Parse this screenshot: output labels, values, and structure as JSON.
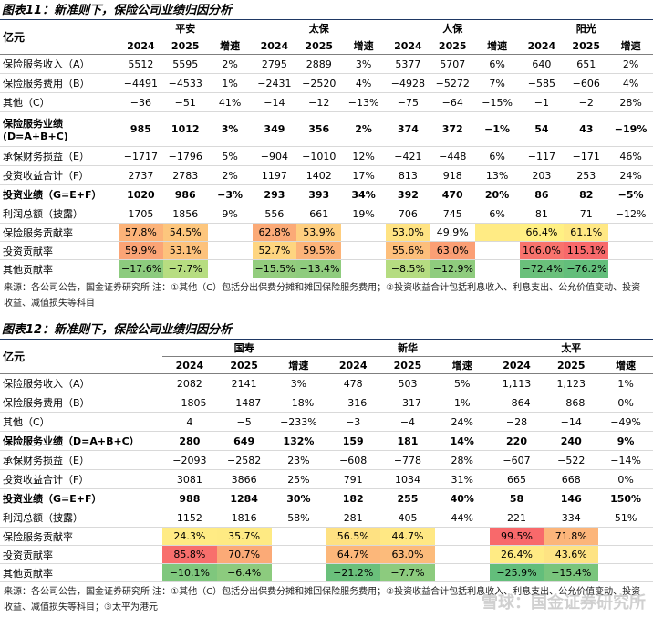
{
  "table1": {
    "title": "图表11：新准则下，保险公司业绩归因分析",
    "unit": "亿元",
    "companies": [
      {
        "name": "平安",
        "cols": [
          "2024",
          "2025",
          "增速"
        ]
      },
      {
        "name": "太保",
        "cols": [
          "2024",
          "2025",
          "增速"
        ]
      },
      {
        "name": "人保",
        "cols": [
          "2024",
          "2025",
          "增速"
        ]
      },
      {
        "name": "阳光",
        "cols": [
          "2024",
          "2025",
          "增速"
        ]
      }
    ],
    "rows": [
      {
        "label": "保险服务收入（A）",
        "cells": [
          "5512",
          "5595",
          "2%",
          "2795",
          "2889",
          "3%",
          "5377",
          "5707",
          "6%",
          "640",
          "651",
          "2%"
        ]
      },
      {
        "label": "保险服务费用（B）",
        "cells": [
          "−4491",
          "−4533",
          "1%",
          "−2431",
          "−2520",
          "4%",
          "−4928",
          "−5272",
          "7%",
          "−585",
          "−606",
          "4%"
        ]
      },
      {
        "label": "其他（C）",
        "cells": [
          "−36",
          "−51",
          "41%",
          "−14",
          "−12",
          "−13%",
          "−75",
          "−64",
          "−15%",
          "−1",
          "−2",
          "28%"
        ]
      },
      {
        "label": [
          "保险服务业绩",
          "(D=A+B+C)"
        ],
        "bold": true,
        "cells": [
          "985",
          "1012",
          "3%",
          "349",
          "356",
          "2%",
          "374",
          "372",
          "−1%",
          "54",
          "43",
          "−19%"
        ]
      },
      {
        "label": "承保财务损益（E）",
        "cells": [
          "−1717",
          "−1796",
          "5%",
          "−904",
          "−1010",
          "12%",
          "−421",
          "−448",
          "6%",
          "−117",
          "−171",
          "46%"
        ]
      },
      {
        "label": "投资收益合计（F）",
        "cells": [
          "2737",
          "2783",
          "2%",
          "1197",
          "1402",
          "17%",
          "813",
          "918",
          "13%",
          "203",
          "253",
          "24%"
        ]
      },
      {
        "label": "投资业绩（G=E+F）",
        "bold": true,
        "cells": [
          "1020",
          "986",
          "−3%",
          "293",
          "393",
          "34%",
          "392",
          "470",
          "20%",
          "86",
          "82",
          "−5%"
        ]
      },
      {
        "label": "利润总额（披露）",
        "cells": [
          "1705",
          "1856",
          "9%",
          "556",
          "661",
          "19%",
          "706",
          "745",
          "6%",
          "81",
          "71",
          "−12%"
        ]
      },
      {
        "label": "保险服务贡献率",
        "cells": [
          "57.8%",
          "54.5%",
          null,
          "62.8%",
          "53.9%",
          null,
          "53.0%",
          "49.9%",
          null,
          "66.4%",
          "61.1%",
          null
        ],
        "fills": [
          "#fcb379",
          "#fdc67d",
          null,
          "#fbaa77",
          "#fece7f",
          null,
          "#ffe383",
          null,
          "#ffeb84",
          "#fff083",
          "#ffe884",
          null
        ]
      },
      {
        "label": "投资贡献率",
        "cells": [
          "59.9%",
          "53.1%",
          null,
          "52.7%",
          "59.5%",
          null,
          "55.6%",
          "63.0%",
          null,
          "106.0%",
          "115.1%",
          null
        ],
        "fills": [
          "#fba476",
          "#fdc27c",
          null,
          "#fed580",
          "#fcb379",
          null,
          "#fdbf7b",
          "#fb9f75",
          null,
          "#f8736d",
          "#f8696b",
          null
        ]
      },
      {
        "label": "其他贡献率",
        "cells": [
          "−17.6%",
          "−7.7%",
          null,
          "−15.5%",
          "−13.4%",
          null,
          "−8.5%",
          "−12.9%",
          null,
          "−72.4%",
          "−76.2%",
          null
        ],
        "fills": [
          "#8ccb7e",
          "#b7dd81",
          null,
          "#93cd7e",
          "#8fcc7e",
          null,
          "#b5dc81",
          "#8fcc7e",
          null,
          "#6ac07b",
          "#63be7b",
          null
        ]
      }
    ],
    "source": "来源：各公司公告，国金证券研究所  注：①其他（C）包括分出保费分摊和摊回保险服务费用；②投资收益合计包括利息收入、利息支出、公允价值变动、投资收益、减值损失等科目"
  },
  "table2": {
    "title": "图表12：新准则下，保险公司业绩归因分析",
    "unit": "亿元",
    "companies": [
      {
        "name": "国寿",
        "cols": [
          "2024",
          "2025",
          "增速"
        ]
      },
      {
        "name": "新华",
        "cols": [
          "2024",
          "2025",
          "增速"
        ]
      },
      {
        "name": "太平",
        "cols": [
          "2024",
          "2025",
          "增速"
        ]
      }
    ],
    "rows": [
      {
        "label": "保险服务收入（A）",
        "cells": [
          "2082",
          "2141",
          "3%",
          "478",
          "503",
          "5%",
          "1,113",
          "1,123",
          "1%"
        ]
      },
      {
        "label": "保险服务费用（B）",
        "cells": [
          "−1805",
          "−1487",
          "−18%",
          "−316",
          "−317",
          "1%",
          "−864",
          "−868",
          "0%"
        ]
      },
      {
        "label": "其他（C）",
        "cells": [
          "4",
          "−5",
          "−233%",
          "−3",
          "−4",
          "24%",
          "−28",
          "−14",
          "−49%"
        ]
      },
      {
        "label": "保险服务业绩（D=A+B+C）",
        "bold": true,
        "cells": [
          "280",
          "649",
          "132%",
          "159",
          "181",
          "14%",
          "220",
          "240",
          "9%"
        ]
      },
      {
        "label": "承保财务损益（E）",
        "cells": [
          "−2093",
          "−2582",
          "23%",
          "−608",
          "−778",
          "28%",
          "−607",
          "−522",
          "−14%"
        ]
      },
      {
        "label": "投资收益合计（F）",
        "cells": [
          "3081",
          "3866",
          "25%",
          "791",
          "1034",
          "31%",
          "665",
          "668",
          "0%"
        ]
      },
      {
        "label": "投资业绩（G=E+F）",
        "bold": true,
        "cells": [
          "988",
          "1284",
          "30%",
          "182",
          "255",
          "40%",
          "58",
          "146",
          "150%"
        ]
      },
      {
        "label": "利润总额（披露）",
        "cells": [
          "1152",
          "1816",
          "58%",
          "281",
          "405",
          "44%",
          "221",
          "334",
          "51%"
        ]
      },
      {
        "label": "保险服务贡献率",
        "cells": [
          "24.3%",
          "35.7%",
          null,
          "56.5%",
          "44.7%",
          null,
          "99.5%",
          "71.8%",
          null
        ],
        "fills": [
          "#ffeb84",
          "#feea83",
          null,
          "#fee182",
          "#ffe884",
          null,
          "#f8696b",
          "#fcb57a",
          null
        ]
      },
      {
        "label": "投资贡献率",
        "cells": [
          "85.8%",
          "70.7%",
          null,
          "64.7%",
          "63.0%",
          null,
          "26.4%",
          "43.6%",
          null
        ],
        "fills": [
          "#f86f6c",
          "#fbaa77",
          null,
          "#fcb77a",
          "#fcbb7b",
          null,
          "#ffeb84",
          "#fee383",
          null
        ]
      },
      {
        "label": "其他贡献率",
        "cells": [
          "−10.1%",
          "−6.4%",
          null,
          "−21.2%",
          "−7.7%",
          null,
          "−25.9%",
          "−15.4%",
          null
        ],
        "fills": [
          "#7fc77d",
          "#8ccb7e",
          null,
          "#6ac07b",
          "#8ccb7e",
          null,
          "#63be7b",
          "#79c57c",
          null
        ]
      }
    ],
    "source": "来源：各公司公告，国金证券研究所  注：①其他（C）包括分出保费分摊和摊回保险服务费用；②投资收益合计包括利息收入、利息支出、公允价值变动、投资收益、减值损失等科目；③太平为港元",
    "watermark": "雪球：国金证券研究所"
  }
}
